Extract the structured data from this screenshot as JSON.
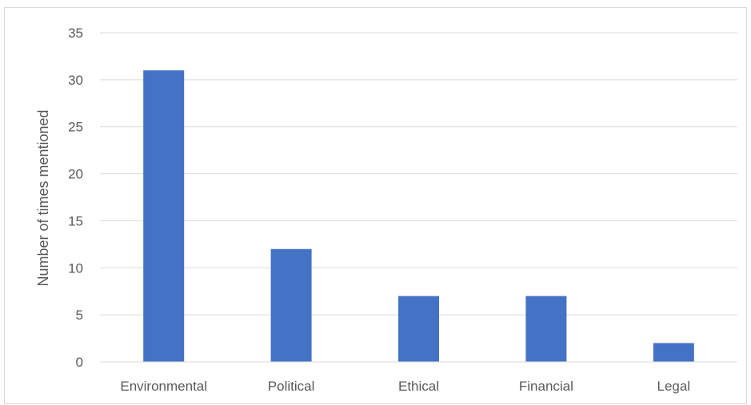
{
  "chart_data": {
    "type": "bar",
    "title": "",
    "xlabel": "",
    "ylabel": "Number of times mentioned",
    "categories": [
      "Environmental",
      "Political",
      "Ethical",
      "Financial",
      "Legal"
    ],
    "values": [
      31,
      12,
      7,
      7,
      2
    ],
    "ylim": [
      0,
      35
    ],
    "yticks": [
      0,
      5,
      10,
      15,
      20,
      25,
      30,
      35
    ],
    "grid": true,
    "legend": "none",
    "colors": {
      "bar": "#4472C4",
      "grid": "#D9D9D9",
      "axis": "#D9D9D9",
      "text": "#595959"
    }
  }
}
